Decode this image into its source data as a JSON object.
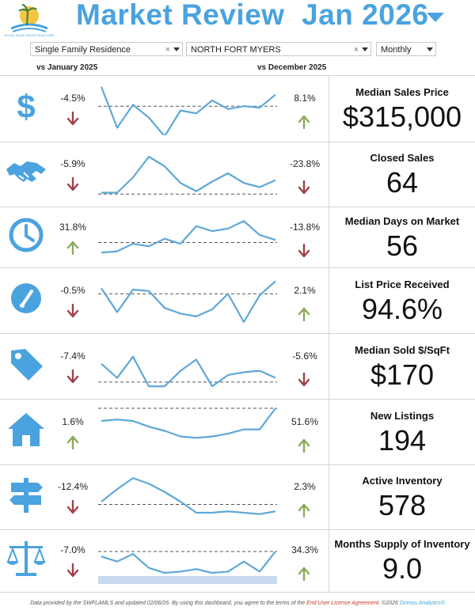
{
  "header": {
    "title": "Market Review",
    "period": "Jan 2026",
    "logo_text": "ROYAL PALM GROUP REALTORS"
  },
  "filters": {
    "property_type": "Single Family Residence",
    "area": "NORTH FORT MYERS",
    "frequency": "Monthly"
  },
  "compare": {
    "left": "vs January 2025",
    "right": "vs December 2025"
  },
  "colors": {
    "accent": "#4aa3de",
    "up": "#8aaa5a",
    "down": "#a0404a"
  },
  "metrics": [
    {
      "title": "Median Sales Price",
      "value": "$315,000",
      "yoy": "-4.5%",
      "yoy_dir": "down",
      "mom": "8.1%",
      "mom_dir": "up",
      "icon": "dollar-icon"
    },
    {
      "title": "Closed Sales",
      "value": "64",
      "yoy": "-5.9%",
      "yoy_dir": "down",
      "mom": "-23.8%",
      "mom_dir": "down",
      "icon": "handshake-icon"
    },
    {
      "title": "Median Days on Market",
      "value": "56",
      "yoy": "31.8%",
      "yoy_dir": "up",
      "mom": "-13.8%",
      "mom_dir": "down",
      "icon": "clock-icon"
    },
    {
      "title": "List Price Received",
      "value": "94.6%",
      "yoy": "-0.5%",
      "yoy_dir": "down",
      "mom": "2.1%",
      "mom_dir": "up",
      "icon": "gauge-icon"
    },
    {
      "title": "Median Sold $/SqFt",
      "value": "$170",
      "yoy": "-7.4%",
      "yoy_dir": "down",
      "mom": "-5.6%",
      "mom_dir": "down",
      "icon": "price-tag-icon"
    },
    {
      "title": "New Listings",
      "value": "194",
      "yoy": "1.6%",
      "yoy_dir": "up",
      "mom": "51.6%",
      "mom_dir": "up",
      "icon": "house-icon"
    },
    {
      "title": "Active Inventory",
      "value": "578",
      "yoy": "-12.4%",
      "yoy_dir": "down",
      "mom": "2.3%",
      "mom_dir": "up",
      "icon": "signpost-icon"
    },
    {
      "title": "Months Supply of Inventory",
      "value": "9.0",
      "yoy": "-7.0%",
      "yoy_dir": "down",
      "mom": "34.3%",
      "mom_dir": "up",
      "icon": "scales-icon"
    }
  ],
  "footer": {
    "text": "Data provided by the SWFLAMLS and updated 02/06/26.  By using this dashboard, you agree to the terms of the",
    "license": "End User License Agreement",
    "copyright": ". ©2026",
    "brand": "Domus Analytics®"
  }
}
